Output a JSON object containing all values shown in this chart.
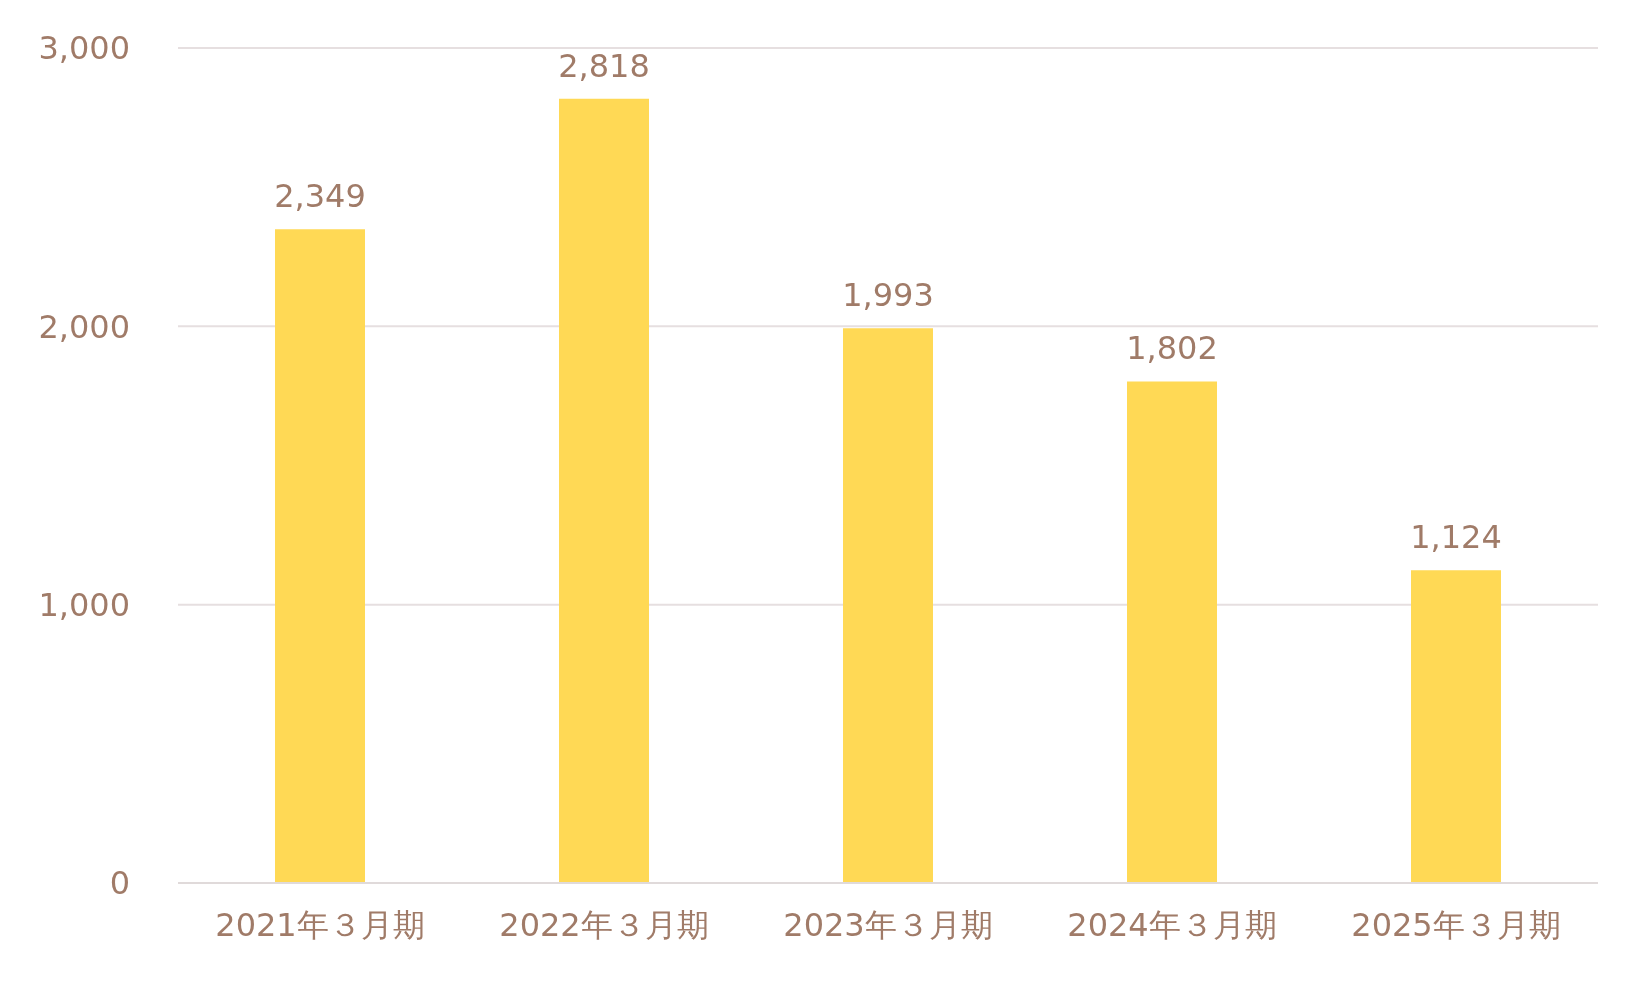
{
  "chart_data": {
    "type": "bar",
    "categories": [
      "2021年３月期",
      "2022年３月期",
      "2023年３月期",
      "2024年３月期",
      "2025年３月期"
    ],
    "values": [
      2349,
      2818,
      1993,
      1802,
      1124
    ],
    "color": "#ffd955",
    "ylim": [
      0,
      3000
    ],
    "yticks": [
      {
        "value": 0,
        "label": "0"
      },
      {
        "value": 1000,
        "label": "1,000"
      },
      {
        "value": 2000,
        "label": "2,000"
      },
      {
        "value": 3000,
        "label": "3,000"
      }
    ],
    "value_labels": [
      "2,349",
      "2,818",
      "1,993",
      "1,802",
      "1,124"
    ],
    "grid": "y"
  }
}
